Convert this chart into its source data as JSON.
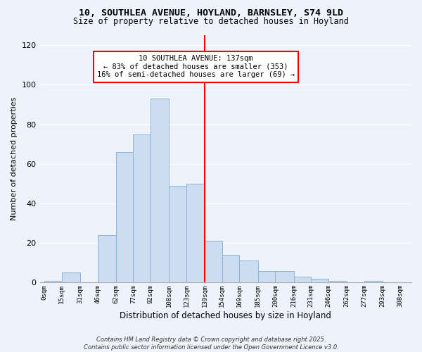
{
  "title": "10, SOUTHLEA AVENUE, HOYLAND, BARNSLEY, S74 9LD",
  "subtitle": "Size of property relative to detached houses in Hoyland",
  "xlabel": "Distribution of detached houses by size in Hoyland",
  "ylabel": "Number of detached properties",
  "bar_left_edges": [
    0,
    15,
    31,
    46,
    62,
    77,
    92,
    108,
    123,
    139,
    154,
    169,
    185,
    200,
    216,
    231,
    246,
    262,
    277,
    293
  ],
  "bar_heights": [
    1,
    5,
    0,
    24,
    66,
    75,
    93,
    49,
    50,
    21,
    14,
    11,
    6,
    6,
    3,
    2,
    1,
    0,
    1,
    0
  ],
  "bar_widths": [
    15,
    16,
    15,
    16,
    15,
    15,
    16,
    15,
    16,
    15,
    15,
    16,
    15,
    16,
    15,
    15,
    16,
    15,
    16,
    15
  ],
  "bar_color": "#ccddf2",
  "bar_edge_color": "#8ab4d8",
  "tick_labels": [
    "0sqm",
    "15sqm",
    "31sqm",
    "46sqm",
    "62sqm",
    "77sqm",
    "92sqm",
    "108sqm",
    "123sqm",
    "139sqm",
    "154sqm",
    "169sqm",
    "185sqm",
    "200sqm",
    "216sqm",
    "231sqm",
    "246sqm",
    "262sqm",
    "277sqm",
    "293sqm",
    "308sqm"
  ],
  "tick_positions": [
    0,
    15,
    31,
    46,
    62,
    77,
    92,
    108,
    123,
    139,
    154,
    169,
    185,
    200,
    216,
    231,
    246,
    262,
    277,
    293,
    308
  ],
  "red_line_x": 139,
  "xlim_left": -4,
  "xlim_right": 318,
  "ylim": [
    0,
    125
  ],
  "yticks": [
    0,
    20,
    40,
    60,
    80,
    100,
    120
  ],
  "annotation_title": "10 SOUTHLEA AVENUE: 137sqm",
  "annotation_line1": "← 83% of detached houses are smaller (353)",
  "annotation_line2": "16% of semi-detached houses are larger (69) →",
  "background_color": "#eef2fa",
  "footer1": "Contains HM Land Registry data © Crown copyright and database right 2025.",
  "footer2": "Contains public sector information licensed under the Open Government Licence v3.0."
}
